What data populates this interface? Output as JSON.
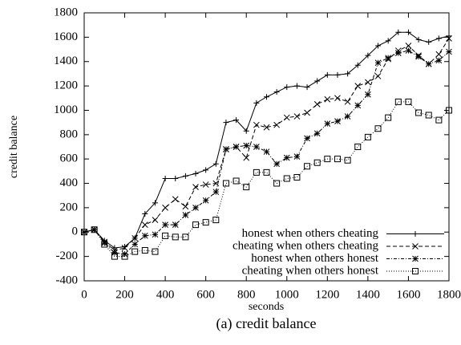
{
  "chart_data": {
    "type": "line",
    "caption": "(a) credit balance",
    "xlabel": "seconds",
    "ylabel": "credit balance",
    "x": [
      0,
      50,
      100,
      150,
      200,
      250,
      300,
      350,
      400,
      450,
      500,
      550,
      600,
      650,
      700,
      750,
      800,
      850,
      900,
      950,
      1000,
      1050,
      1100,
      1150,
      1200,
      1250,
      1300,
      1350,
      1400,
      1450,
      1500,
      1550,
      1600,
      1650,
      1700,
      1750,
      1800
    ],
    "series": [
      {
        "name": "honest when others cheating",
        "color": "#000000",
        "marker": "plus",
        "dash": "solid",
        "values": [
          0,
          20,
          -70,
          -130,
          -120,
          -50,
          150,
          240,
          440,
          440,
          460,
          480,
          510,
          560,
          900,
          920,
          830,
          1060,
          1110,
          1150,
          1190,
          1200,
          1190,
          1240,
          1290,
          1290,
          1300,
          1370,
          1450,
          1530,
          1570,
          1640,
          1640,
          1580,
          1560,
          1590,
          1610
        ]
      },
      {
        "name": "cheating when others cheating",
        "color": "#000000",
        "marker": "cross",
        "dash": "dashed",
        "values": [
          0,
          20,
          -80,
          -150,
          -130,
          -50,
          60,
          100,
          200,
          270,
          210,
          370,
          390,
          400,
          680,
          700,
          610,
          880,
          860,
          880,
          940,
          950,
          980,
          1050,
          1090,
          1100,
          1070,
          1200,
          1230,
          1280,
          1420,
          1490,
          1530,
          1450,
          1380,
          1460,
          1590
        ]
      },
      {
        "name": "honest when others honest",
        "color": "#000000",
        "marker": "star",
        "dash": "dashdot",
        "values": [
          0,
          20,
          -90,
          -170,
          -180,
          -100,
          -30,
          -20,
          60,
          60,
          140,
          200,
          260,
          330,
          680,
          700,
          710,
          700,
          660,
          560,
          610,
          620,
          770,
          810,
          890,
          910,
          950,
          1040,
          1130,
          1390,
          1430,
          1470,
          1490,
          1440,
          1380,
          1410,
          1480
        ]
      },
      {
        "name": "cheating when others honest",
        "color": "#000000",
        "marker": "square",
        "dash": "dotted",
        "values": [
          0,
          20,
          -100,
          -200,
          -200,
          -160,
          -150,
          -160,
          -30,
          -40,
          -40,
          60,
          80,
          100,
          400,
          420,
          370,
          490,
          490,
          400,
          440,
          450,
          540,
          570,
          600,
          600,
          590,
          700,
          780,
          850,
          940,
          1070,
          1070,
          980,
          960,
          920,
          1000
        ]
      }
    ],
    "xlim": [
      0,
      1800
    ],
    "xticks": [
      0,
      200,
      400,
      600,
      800,
      1000,
      1200,
      1400,
      1600,
      1800
    ],
    "ylim": [
      -400,
      1800
    ],
    "yticks": [
      -400,
      -200,
      0,
      200,
      400,
      600,
      800,
      1000,
      1200,
      1400,
      1600,
      1800
    ],
    "legend": "lower right"
  }
}
